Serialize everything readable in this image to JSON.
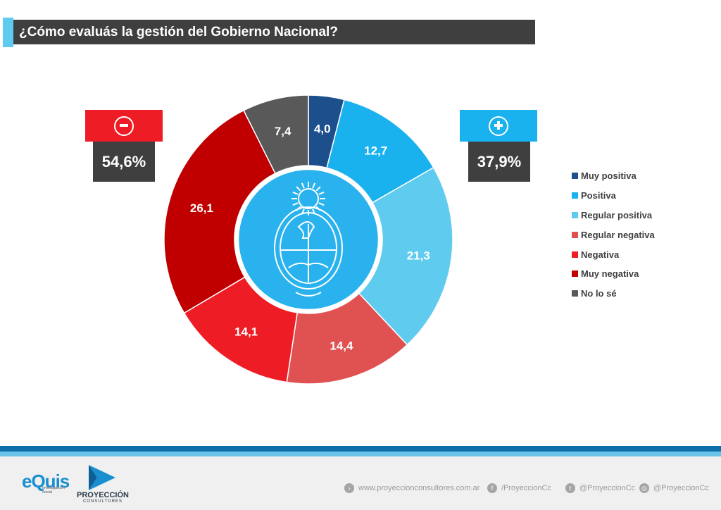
{
  "title": "¿Cómo evaluás la gestión del Gobierno Nacional?",
  "chart_data": {
    "type": "pie",
    "variant": "donut",
    "title": "¿Cómo evaluás la gestión del Gobierno Nacional?",
    "slices": [
      {
        "label": "Muy positiva",
        "value": 4.0,
        "display": "4,0",
        "color": "#1d4f8c"
      },
      {
        "label": "Positiva",
        "value": 12.7,
        "display": "12,7",
        "color": "#1ab2ee"
      },
      {
        "label": "Regular positiva",
        "value": 21.3,
        "display": "21,3",
        "color": "#5ecbef"
      },
      {
        "label": "Regular negativa",
        "value": 14.4,
        "display": "14,4",
        "color": "#e05252"
      },
      {
        "label": "Negativa",
        "value": 14.1,
        "display": "14,1",
        "color": "#ee1c25"
      },
      {
        "label": "Muy negativa",
        "value": 26.1,
        "display": "26,1",
        "color": "#c00000"
      },
      {
        "label": "No lo sé",
        "value": 7.4,
        "display": "7,4",
        "color": "#595959"
      }
    ],
    "legend_position": "right",
    "center_color": "#29b2ee"
  },
  "summary": {
    "negative_total": "54,6%",
    "positive_total": "37,9%",
    "negative_color": "#ee1c25",
    "positive_color": "#1ab2ee"
  },
  "footer": {
    "equis_logo": "eQuis",
    "equis_tagline": "investigación social",
    "proyeccion_name": "PROYECCIÓN",
    "proyeccion_sub": "CONSULTORES",
    "website": "www.proyeccionconsultores.com.ar",
    "facebook": "/ProyeccionCc",
    "twitter": "@ProyeccionCc",
    "instagram": "@ProyeccionCc"
  }
}
